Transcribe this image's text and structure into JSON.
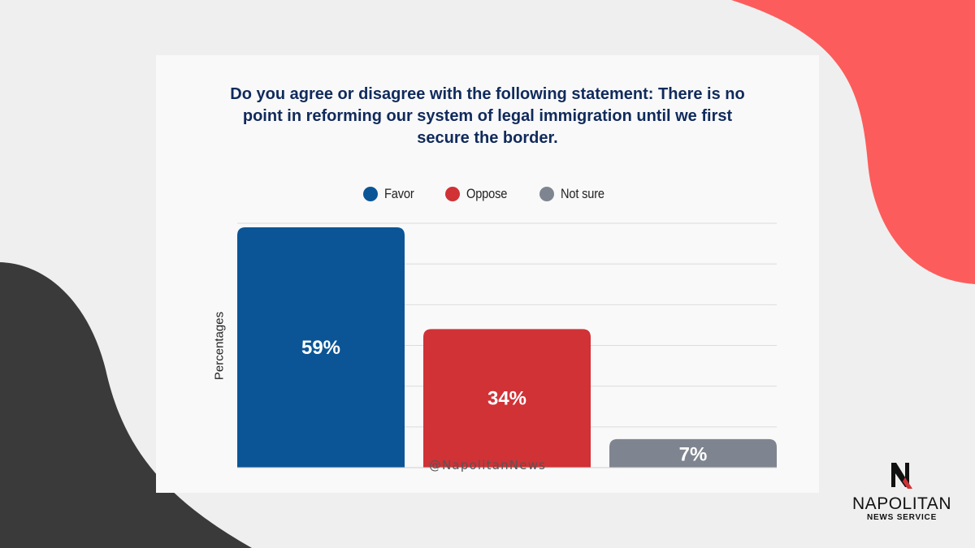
{
  "colors": {
    "background": "#efefef",
    "card": "#f9f9f9",
    "blob_red": "#fd5c5c",
    "blob_dark": "#3a3a3a",
    "title": "#102a5c",
    "grid": "#dcdcdc",
    "favor": "#0b5596",
    "oppose": "#d03236",
    "not_sure": "#7f8590"
  },
  "chart_data": {
    "type": "bar",
    "title": "Do you agree or disagree with the following statement: There is no point in reforming our system of legal immigration until we first secure the border.",
    "ylabel": "Percentages",
    "ylim": [
      0,
      60
    ],
    "grid": true,
    "legend_position": "top-center",
    "series": [
      {
        "name": "Favor",
        "value": 59,
        "label": "59%",
        "color": "#0b5596"
      },
      {
        "name": "Oppose",
        "value": 34,
        "label": "34%",
        "color": "#d03236"
      },
      {
        "name": "Not sure",
        "value": 7,
        "label": "7%",
        "color": "#7f8590"
      }
    ]
  },
  "footer": {
    "handle": "@NapolitanNews",
    "logo_letter": "N",
    "brand_name": "NAPOLITAN",
    "brand_sub": "NEWS SERVICE"
  }
}
